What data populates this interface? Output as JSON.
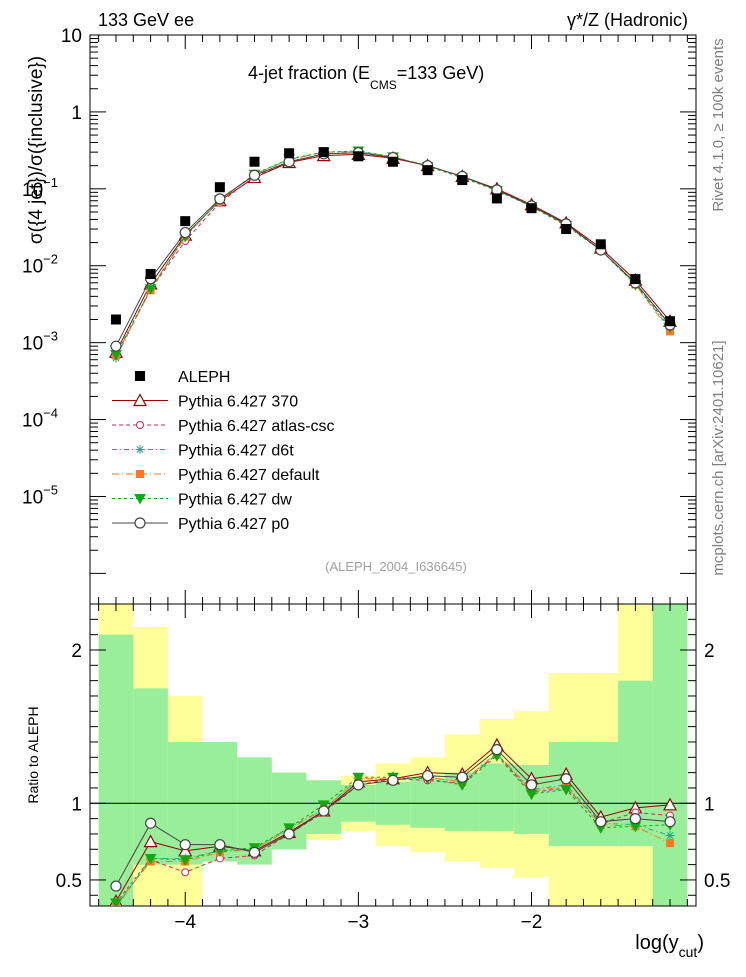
{
  "labels": {
    "energy": "133 GeV ee",
    "process": "γ*/Z (Hadronic)",
    "plot_title_main": "4-jet fraction (E",
    "plot_title_sub": "CMS",
    "plot_title_tail": "=133 GeV)",
    "ylabel_top": "σ({4 jet})/σ({inclusive})",
    "ylabel_ratio": "Ratio to ALEPH",
    "xlabel_main": "log(y",
    "xlabel_sub": "cut",
    "xlabel_tail": ")",
    "watermark": "(ALEPH_2004_I636645)",
    "side_rivet": "Rivet 4.1.0, ≥ 100k events",
    "side_mcplots": "mcplots.cern.ch [arXiv:2401.10621]"
  },
  "colors": {
    "data": "#000000",
    "p370": "#990000",
    "atlas": "#dd2266",
    "d6t": "#22aa88",
    "default": "#ff7722",
    "dw": "#11aa11",
    "p0": "#444444",
    "band_inner": "#99ee99",
    "band_outer": "#ffff99"
  },
  "chart_data": [
    {
      "type": "line",
      "title": "4-jet fraction (E_CMS=133 GeV)",
      "xlabel": "log(y_cut)",
      "ylabel": "σ({4 jet})/σ({inclusive})",
      "yscale": "log",
      "xlim": [
        -4.55,
        -1.05
      ],
      "ylim": [
        4e-07,
        10
      ],
      "xticks": [
        -4,
        -3,
        -2
      ],
      "xtick_labels": [
        "−4",
        "−3",
        "−2"
      ],
      "yticks": [
        1e-05,
        0.0001,
        0.001,
        0.01,
        0.1,
        1,
        10
      ],
      "ytick_labels": [
        {
          "base": "10",
          "exp": "−5"
        },
        {
          "base": "10",
          "exp": "−4"
        },
        {
          "base": "10",
          "exp": "−3"
        },
        {
          "base": "10",
          "exp": "−2"
        },
        {
          "base": "10",
          "exp": "−1"
        },
        {
          "base": "1",
          "exp": ""
        },
        {
          "base": "10",
          "exp": ""
        }
      ],
      "x": [
        -4.4,
        -4.2,
        -4.0,
        -3.8,
        -3.6,
        -3.4,
        -3.2,
        -3.0,
        -2.8,
        -2.6,
        -2.4,
        -2.2,
        -2.0,
        -1.8,
        -1.6,
        -1.4,
        -1.2
      ],
      "data_series": {
        "name": "ALEPH",
        "x": [
          -4.4,
          -4.2,
          -4.0,
          -3.8,
          -3.6,
          -3.4,
          -3.2,
          -3.0,
          -2.8,
          -2.6,
          -2.4,
          -2.2,
          -2.0,
          -1.8,
          -1.6,
          -1.4,
          -1.2
        ],
        "values": [
          0.002,
          0.0078,
          0.038,
          0.105,
          0.225,
          0.29,
          0.3,
          0.265,
          0.225,
          0.175,
          0.13,
          0.075,
          0.056,
          0.03,
          0.019,
          0.0067,
          0.0019
        ]
      },
      "series": [
        {
          "name": "Pythia 6.427 370",
          "key": "p370",
          "marker": "triangle",
          "values": [
            0.00075,
            0.0058,
            0.025,
            0.07,
            0.14,
            0.22,
            0.27,
            0.28,
            0.25,
            0.2,
            0.145,
            0.1,
            0.062,
            0.036,
            0.017,
            0.0065,
            0.0019
          ]
        },
        {
          "name": "Pythia 6.427 atlas-csc",
          "key": "atlas",
          "marker": "circle-small",
          "values": [
            0.00067,
            0.0049,
            0.021,
            0.066,
            0.145,
            0.225,
            0.285,
            0.295,
            0.255,
            0.2,
            0.145,
            0.097,
            0.06,
            0.035,
            0.016,
            0.006,
            0.0017
          ]
        },
        {
          "name": "Pythia 6.427 d6t",
          "key": "d6t",
          "marker": "star",
          "values": [
            0.00063,
            0.0051,
            0.024,
            0.072,
            0.155,
            0.24,
            0.3,
            0.305,
            0.26,
            0.2,
            0.145,
            0.096,
            0.06,
            0.034,
            0.016,
            0.0058,
            0.0015
          ]
        },
        {
          "name": "Pythia 6.427 default",
          "key": "default",
          "marker": "square",
          "values": [
            0.00068,
            0.0048,
            0.024,
            0.07,
            0.155,
            0.24,
            0.3,
            0.305,
            0.26,
            0.2,
            0.145,
            0.097,
            0.06,
            0.034,
            0.016,
            0.0057,
            0.0014
          ]
        },
        {
          "name": "Pythia 6.427 dw",
          "key": "dw",
          "marker": "triangle-down",
          "values": [
            0.0007,
            0.005,
            0.024,
            0.072,
            0.155,
            0.245,
            0.3,
            0.31,
            0.26,
            0.195,
            0.14,
            0.095,
            0.059,
            0.033,
            0.016,
            0.0057,
            0.0016
          ]
        },
        {
          "name": "Pythia 6.427 p0",
          "key": "p0",
          "marker": "circle",
          "values": [
            0.0009,
            0.0068,
            0.027,
            0.074,
            0.15,
            0.225,
            0.285,
            0.295,
            0.255,
            0.2,
            0.145,
            0.097,
            0.06,
            0.035,
            0.016,
            0.006,
            0.0017
          ]
        }
      ],
      "legend_position": "middle-left"
    },
    {
      "type": "line",
      "title": "",
      "xlabel": "log(y_cut)",
      "ylabel": "Ratio to ALEPH",
      "ylim": [
        0.33,
        2.3
      ],
      "yticks": [
        0.5,
        1,
        2
      ],
      "ytick_labels": [
        "0.5",
        "1",
        "2"
      ],
      "reference_line": 1,
      "bin_edges": [
        -4.5,
        -4.3,
        -4.1,
        -3.9,
        -3.7,
        -3.5,
        -3.3,
        -3.1,
        -2.9,
        -2.7,
        -2.5,
        -2.3,
        -2.1,
        -1.9,
        -1.7,
        -1.5,
        -1.3,
        -1.1
      ],
      "band_inner": [
        [
          0.3,
          2.1
        ],
        [
          0.6,
          1.75
        ],
        [
          0.6,
          1.4
        ],
        [
          0.62,
          1.4
        ],
        [
          0.6,
          1.3
        ],
        [
          0.7,
          1.2
        ],
        [
          0.8,
          1.15
        ],
        [
          0.88,
          1.12
        ],
        [
          0.86,
          1.14
        ],
        [
          0.84,
          1.16
        ],
        [
          0.82,
          1.2
        ],
        [
          0.82,
          1.26
        ],
        [
          0.8,
          1.25
        ],
        [
          0.72,
          1.4
        ],
        [
          0.72,
          1.4
        ],
        [
          0.72,
          1.8
        ],
        [
          0.3,
          2.3
        ]
      ],
      "band_outer": [
        [
          0.3,
          2.3
        ],
        [
          0.3,
          2.15
        ],
        [
          0.3,
          1.7
        ],
        [
          0.72,
          1.3
        ],
        [
          0.7,
          1.25
        ],
        [
          0.78,
          1.2
        ],
        [
          0.76,
          1.15
        ],
        [
          0.82,
          1.18
        ],
        [
          0.72,
          1.26
        ],
        [
          0.68,
          1.3
        ],
        [
          0.62,
          1.45
        ],
        [
          0.58,
          1.55
        ],
        [
          0.52,
          1.6
        ],
        [
          0.3,
          1.85
        ],
        [
          0.3,
          1.85
        ],
        [
          0.3,
          2.3
        ],
        [
          0.3,
          2.3
        ]
      ],
      "x": [
        -4.4,
        -4.2,
        -4.0,
        -3.8,
        -3.6,
        -3.4,
        -3.2,
        -3.0,
        -2.8,
        -2.6,
        -2.4,
        -2.2,
        -2.0,
        -1.8,
        -1.6,
        -1.4,
        -1.2
      ],
      "series": [
        {
          "name": "Pythia 6.427 370",
          "key": "p370",
          "marker": "triangle",
          "values": [
            0.36,
            0.75,
            0.69,
            0.72,
            0.69,
            0.81,
            0.95,
            1.14,
            1.16,
            1.2,
            1.19,
            1.38,
            1.16,
            1.19,
            0.91,
            0.97,
            0.99
          ]
        },
        {
          "name": "Pythia 6.427 atlas-csc",
          "key": "atlas",
          "marker": "circle-small",
          "values": [
            0.33,
            0.63,
            0.55,
            0.64,
            0.66,
            0.8,
            0.94,
            1.12,
            1.16,
            1.15,
            1.13,
            1.32,
            1.07,
            1.1,
            0.87,
            0.94,
            0.92
          ]
        },
        {
          "name": "Pythia 6.427 d6t",
          "key": "d6t",
          "marker": "star",
          "values": [
            0.32,
            0.64,
            0.64,
            0.69,
            0.7,
            0.84,
            0.96,
            1.16,
            1.16,
            1.17,
            1.14,
            1.32,
            1.09,
            1.12,
            0.87,
            0.86,
            0.79
          ]
        },
        {
          "name": "Pythia 6.427 default",
          "key": "default",
          "marker": "square",
          "values": [
            0.34,
            0.62,
            0.62,
            0.68,
            0.7,
            0.83,
            0.96,
            1.16,
            1.16,
            1.17,
            1.14,
            1.33,
            1.08,
            1.11,
            0.86,
            0.85,
            0.74
          ]
        },
        {
          "name": "Pythia 6.427 dw",
          "key": "dw",
          "marker": "triangle-down",
          "values": [
            0.35,
            0.64,
            0.63,
            0.69,
            0.71,
            0.84,
            0.99,
            1.17,
            1.17,
            1.16,
            1.12,
            1.31,
            1.06,
            1.09,
            0.84,
            0.85,
            0.86
          ]
        },
        {
          "name": "Pythia 6.427 p0",
          "key": "p0",
          "marker": "circle",
          "values": [
            0.46,
            0.87,
            0.73,
            0.73,
            0.68,
            0.8,
            0.95,
            1.12,
            1.15,
            1.18,
            1.17,
            1.35,
            1.12,
            1.16,
            0.88,
            0.9,
            0.88
          ]
        }
      ]
    }
  ]
}
